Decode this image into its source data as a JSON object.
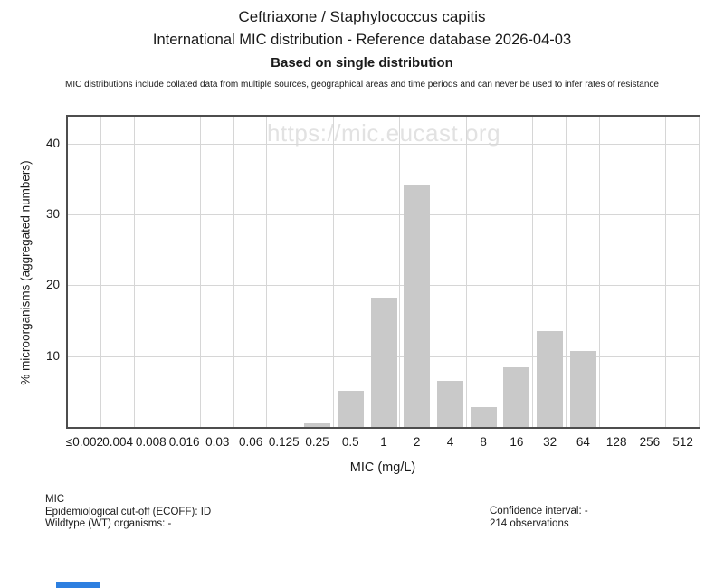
{
  "header": {
    "title": "Ceftriaxone / Staphylococcus capitis",
    "subtitle": "International MIC distribution - Reference database 2026-04-03",
    "mode_heading": "Based on single distribution",
    "disclaimer": "MIC distributions include collated data from multiple sources, geographical areas and time periods and can never be used to infer rates of resistance"
  },
  "watermark": "https://mic.eucast.org",
  "chart_data": {
    "type": "bar",
    "title": "Ceftriaxone / Staphylococcus capitis",
    "subtitle": "International MIC distribution - Reference database 2026-04-03",
    "categories": [
      "≤0.002",
      "0.004",
      "0.008",
      "0.016",
      "0.03",
      "0.06",
      "0.125",
      "0.25",
      "0.5",
      "1",
      "2",
      "4",
      "8",
      "16",
      "32",
      "64",
      "128",
      "256",
      "512"
    ],
    "values": [
      0,
      0,
      0,
      0,
      0,
      0,
      0,
      0.47,
      5.14,
      18.22,
      34.11,
      6.54,
      2.8,
      8.41,
      13.55,
      10.75,
      0,
      0,
      0
    ],
    "xlabel": "MIC (mg/L)",
    "ylabel": "% microorganisms (aggregated numbers)",
    "ylim": [
      0,
      43.8
    ],
    "yticks": [
      10,
      20,
      30,
      40
    ],
    "grid": true,
    "legend": null,
    "bar_color": "#c9c9c9",
    "grid_color": "#d6d6d6",
    "axis_color": "#4d4d4d"
  },
  "footer": {
    "left_lines": [
      "MIC",
      "Epidemiological cut-off (ECOFF): ID",
      "Wildtype (WT) organisms: -"
    ],
    "right_lines": [
      "Confidence interval: -",
      "214 observations"
    ]
  },
  "bottom_bar": {
    "color": "#2d7fe0"
  }
}
